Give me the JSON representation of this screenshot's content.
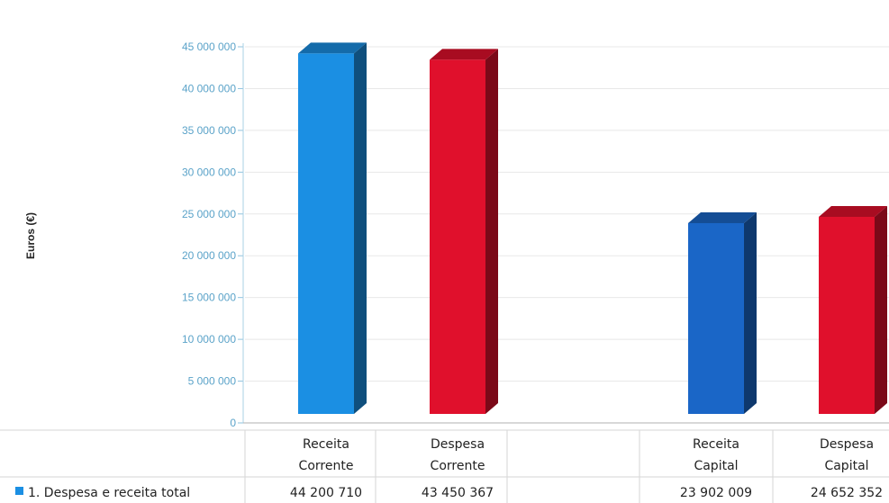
{
  "chart_data": {
    "type": "bar",
    "ylabel": "Euros (€)",
    "ylim": [
      0,
      45000000
    ],
    "yticks": [
      "0",
      "5 000 000",
      "10 000 000",
      "15 000 000",
      "20 000 000",
      "25 000 000",
      "30 000 000",
      "35 000 000",
      "40 000 000",
      "45 000 000"
    ],
    "categories": [
      {
        "line1": "Receita",
        "line2": "Corrente"
      },
      {
        "line1": "Despesa",
        "line2": "Corrente"
      },
      {
        "line1": "Receita",
        "line2": "Capital"
      },
      {
        "line1": "Despesa",
        "line2": "Capital"
      }
    ],
    "series": [
      {
        "name": "1. Despesa e receita total",
        "values": [
          44200710,
          43450367,
          23902009,
          24652352
        ],
        "labels": [
          "44 200 710",
          "43 450 367",
          "23 902 009",
          "24 652 352"
        ]
      }
    ],
    "colors": [
      "#1b8fe3",
      "#e0102c",
      "#1a66c7",
      "#e0102c"
    ],
    "legend_color": "#1b8fe3",
    "grid": true,
    "legend_position": "bottom-left (data table)"
  }
}
